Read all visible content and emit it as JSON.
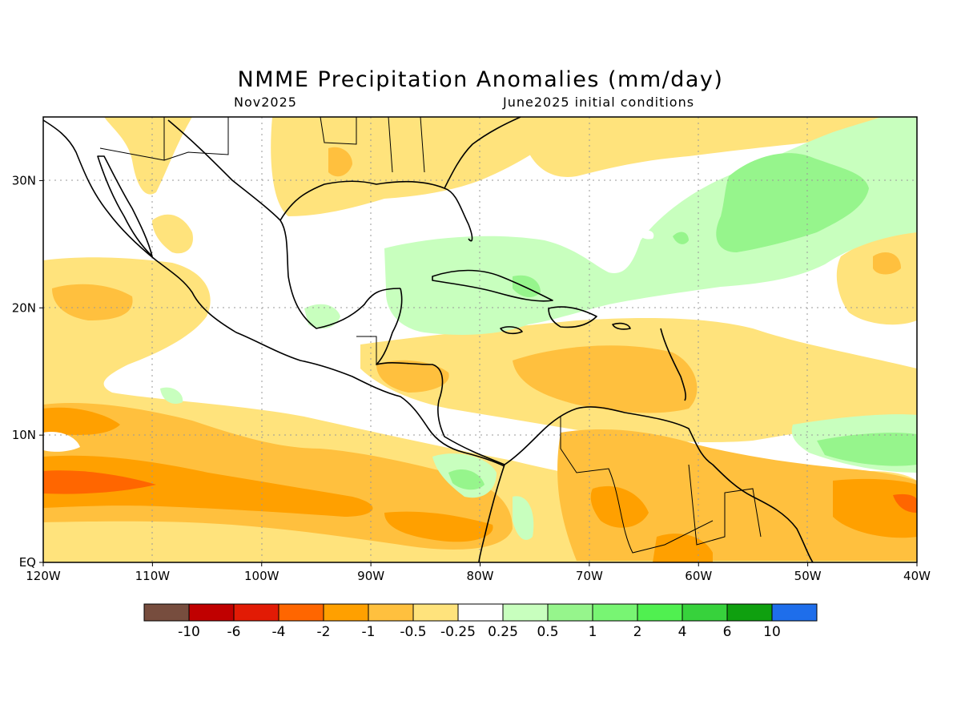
{
  "map": {
    "title": "NMME Precipitation Anomalies (mm/day)",
    "subtitle_left": "Nov2025",
    "subtitle_right": "June2025 initial conditions",
    "lon_ticks": [
      "120W",
      "110W",
      "100W",
      "90W",
      "80W",
      "70W",
      "60W",
      "50W",
      "40W"
    ],
    "lat_ticks": [
      "EQ",
      "10N",
      "20N",
      "30N"
    ],
    "extent": {
      "lon": [
        -120,
        -40
      ],
      "lat": [
        0,
        35
      ]
    }
  },
  "colorbar": {
    "colors": [
      "#774d3e",
      "#c00000",
      "#e21b05",
      "#ff6600",
      "#ffa000",
      "#ffc03e",
      "#ffe37c",
      "#ffffff",
      "#c8ffbe",
      "#96f58c",
      "#78f573",
      "#50f050",
      "#37d23c",
      "#0fa00f",
      "#1e6eeb"
    ],
    "labels": [
      "-10",
      "-6",
      "-4",
      "-2",
      "-1",
      "-0.5",
      "-0.25",
      "0.25",
      "0.5",
      "1",
      "2",
      "4",
      "6",
      "10"
    ]
  }
}
